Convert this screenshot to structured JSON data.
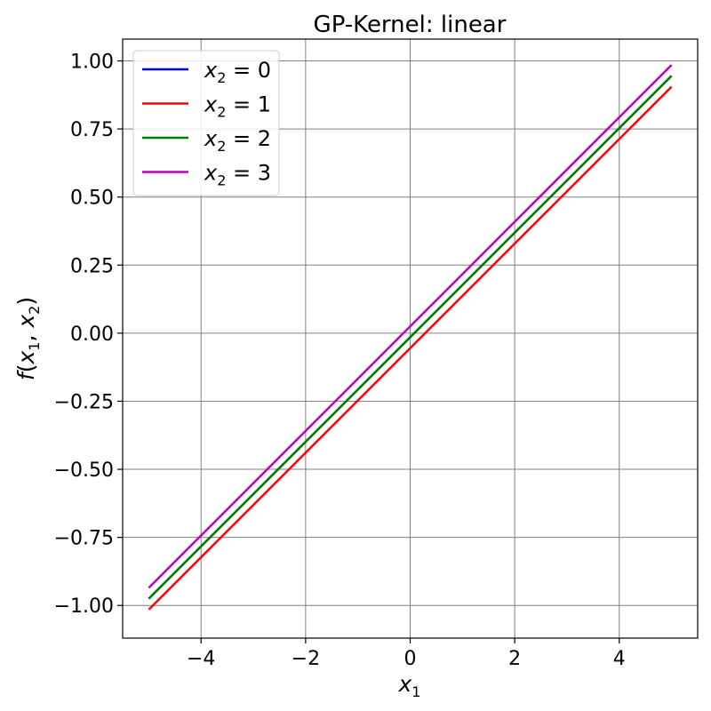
{
  "chart_data": {
    "type": "line",
    "title": "GP-Kernel: linear",
    "xlabel": "x1",
    "ylabel": "f(x1, x2)",
    "xlim": [
      -5.5,
      5.5
    ],
    "ylim": [
      -1.12,
      1.08
    ],
    "x_ticks": [
      -4,
      -2,
      0,
      2,
      4
    ],
    "x_tick_labels": [
      "−4",
      "−2",
      "0",
      "2",
      "4"
    ],
    "y_ticks": [
      -1.0,
      -0.75,
      -0.5,
      -0.25,
      0.0,
      0.25,
      0.5,
      0.75,
      1.0
    ],
    "y_tick_labels": [
      "−1.00",
      "−0.75",
      "−0.50",
      "−0.25",
      "0.00",
      "0.25",
      "0.50",
      "0.75",
      "1.00"
    ],
    "grid": true,
    "legend_position": "top-left",
    "series": [
      {
        "name": "x2 = 0",
        "var": "x",
        "sub": "2",
        "eq": "0",
        "color": "#0000ff",
        "x": [
          -5,
          5
        ],
        "y": [
          -0.975,
          0.945
        ]
      },
      {
        "name": "x2 = 1",
        "var": "x",
        "sub": "2",
        "eq": "1",
        "color": "#ff0000",
        "x": [
          -5,
          5
        ],
        "y": [
          -1.015,
          0.905
        ]
      },
      {
        "name": "x2 = 2",
        "var": "x",
        "sub": "2",
        "eq": "2",
        "color": "#008000",
        "x": [
          -5,
          5
        ],
        "y": [
          -0.975,
          0.945
        ]
      },
      {
        "name": "x2 = 3",
        "var": "x",
        "sub": "2",
        "eq": "3",
        "color": "#bf00bf",
        "x": [
          -5,
          5
        ],
        "y": [
          -0.935,
          0.985
        ]
      }
    ]
  }
}
